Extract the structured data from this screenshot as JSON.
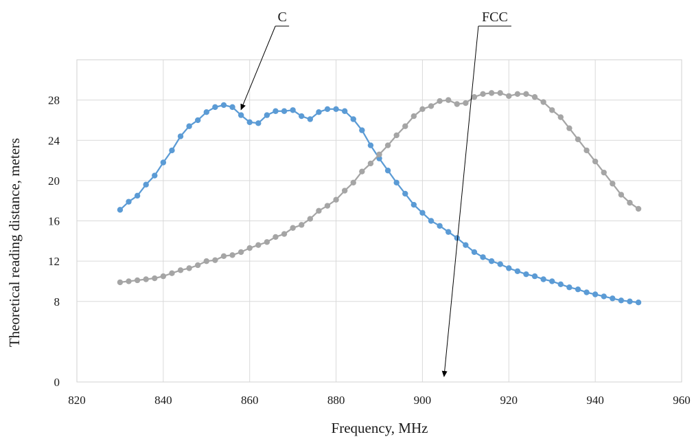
{
  "chart_data": {
    "type": "line",
    "title": "",
    "xlabel": "Frequency, MHz",
    "ylabel": "Theoretical reading distance, meters",
    "xlim": [
      820,
      960
    ],
    "ylim": [
      0,
      32
    ],
    "xticks": [
      820,
      840,
      860,
      880,
      900,
      920,
      940,
      960
    ],
    "yticks": [
      0,
      8,
      12,
      16,
      20,
      24,
      28
    ],
    "grid": true,
    "legend": "none",
    "series": [
      {
        "name": "C",
        "color": "#5b9bd5",
        "x": [
          830,
          832,
          834,
          836,
          838,
          840,
          842,
          844,
          846,
          848,
          850,
          852,
          854,
          856,
          858,
          860,
          862,
          864,
          866,
          868,
          870,
          872,
          874,
          876,
          878,
          880,
          882,
          884,
          886,
          888,
          890,
          892,
          894,
          896,
          898,
          900,
          902,
          904,
          906,
          908,
          910,
          912,
          914,
          916,
          918,
          920,
          922,
          924,
          926,
          928,
          930,
          932,
          934,
          936,
          938,
          940,
          942,
          944,
          946,
          948,
          950
        ],
        "y": [
          17.1,
          17.9,
          18.5,
          19.6,
          20.5,
          21.8,
          23.0,
          24.4,
          25.4,
          26.0,
          26.8,
          27.3,
          27.5,
          27.3,
          26.5,
          25.8,
          25.7,
          26.5,
          26.9,
          26.9,
          27.0,
          26.4,
          26.1,
          26.8,
          27.1,
          27.1,
          26.9,
          26.1,
          25.0,
          23.5,
          22.2,
          21.0,
          19.8,
          18.7,
          17.6,
          16.8,
          16.0,
          15.5,
          14.9,
          14.3,
          13.6,
          12.9,
          12.4,
          12.0,
          11.7,
          11.3,
          11.0,
          10.7,
          10.5,
          10.2,
          10.0,
          9.7,
          9.4,
          9.2,
          8.9,
          8.7,
          8.5,
          8.3,
          8.1,
          8.0,
          7.9
        ]
      },
      {
        "name": "FCC",
        "color": "#a5a5a5",
        "x": [
          830,
          832,
          834,
          836,
          838,
          840,
          842,
          844,
          846,
          848,
          850,
          852,
          854,
          856,
          858,
          860,
          862,
          864,
          866,
          868,
          870,
          872,
          874,
          876,
          878,
          880,
          882,
          884,
          886,
          888,
          890,
          892,
          894,
          896,
          898,
          900,
          902,
          904,
          906,
          908,
          910,
          912,
          914,
          916,
          918,
          920,
          922,
          924,
          926,
          928,
          930,
          932,
          934,
          936,
          938,
          940,
          942,
          944,
          946,
          948,
          950
        ],
        "y": [
          9.9,
          10.0,
          10.1,
          10.2,
          10.3,
          10.5,
          10.8,
          11.1,
          11.3,
          11.6,
          12.0,
          12.1,
          12.5,
          12.6,
          12.9,
          13.3,
          13.6,
          13.9,
          14.4,
          14.7,
          15.3,
          15.6,
          16.2,
          17.0,
          17.5,
          18.1,
          19.0,
          19.8,
          20.9,
          21.7,
          22.6,
          23.5,
          24.5,
          25.4,
          26.4,
          27.1,
          27.4,
          27.9,
          28.0,
          27.6,
          27.7,
          28.3,
          28.6,
          28.7,
          28.7,
          28.4,
          28.6,
          28.6,
          28.3,
          27.8,
          27.0,
          26.3,
          25.2,
          24.1,
          23.0,
          21.9,
          20.8,
          19.7,
          18.6,
          17.8,
          17.2
        ]
      }
    ],
    "annotations": [
      {
        "text": "C",
        "series": "C",
        "x": 858
      },
      {
        "text": "FCC",
        "series": "FCC",
        "x": 905
      }
    ]
  }
}
